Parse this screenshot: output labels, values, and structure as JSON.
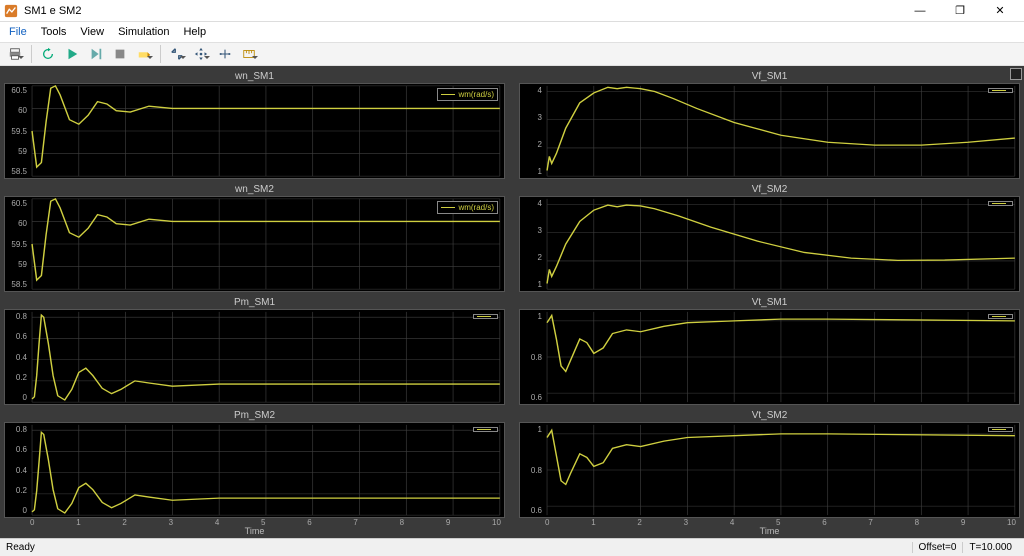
{
  "window": {
    "title": "SM1 e SM2",
    "controls": {
      "minimize": "—",
      "maximize": "❐",
      "close": "✕"
    }
  },
  "menubar": {
    "items": [
      {
        "label": "File",
        "active": true
      },
      {
        "label": "Tools",
        "active": false
      },
      {
        "label": "View",
        "active": false
      },
      {
        "label": "Simulation",
        "active": false
      },
      {
        "label": "Help",
        "active": false
      }
    ]
  },
  "toolbar": {
    "buttons": [
      {
        "name": "print-icon",
        "dd": true
      },
      {
        "name": "sep"
      },
      {
        "name": "restart-icon",
        "dd": false
      },
      {
        "name": "run-icon",
        "dd": false
      },
      {
        "name": "step-icon",
        "dd": false
      },
      {
        "name": "stop-icon",
        "dd": false
      },
      {
        "name": "highlight-icon",
        "dd": true
      },
      {
        "name": "sep"
      },
      {
        "name": "zoom-icon",
        "dd": true
      },
      {
        "name": "pan-icon",
        "dd": true
      },
      {
        "name": "cursor-icon",
        "dd": false
      },
      {
        "name": "measure-icon",
        "dd": true
      }
    ]
  },
  "scope": {
    "background": "#3a3a3a",
    "plot_bg": "#000000",
    "grid_color": "#404040",
    "line_color": "#cfcf40",
    "text_color": "#aaaaaa",
    "xlim": [
      0,
      10
    ],
    "xticks": [
      0,
      1,
      2,
      3,
      4,
      5,
      6,
      7,
      8,
      9,
      10
    ],
    "xlabel": "Time",
    "plots": [
      {
        "title": "wn_SM1",
        "legend": "wm(rad/s)",
        "ylim": [
          58.5,
          60.5
        ],
        "yticks": [
          58.5,
          59,
          59.5,
          60,
          60.5
        ],
        "data": [
          [
            0,
            59.5
          ],
          [
            0.1,
            58.7
          ],
          [
            0.2,
            58.8
          ],
          [
            0.3,
            59.7
          ],
          [
            0.4,
            60.45
          ],
          [
            0.5,
            60.5
          ],
          [
            0.6,
            60.3
          ],
          [
            0.8,
            59.75
          ],
          [
            1.0,
            59.65
          ],
          [
            1.2,
            59.85
          ],
          [
            1.4,
            60.15
          ],
          [
            1.6,
            60.1
          ],
          [
            1.8,
            59.95
          ],
          [
            2.1,
            59.92
          ],
          [
            2.5,
            60.05
          ],
          [
            3.0,
            60.0
          ],
          [
            3.5,
            60.0
          ],
          [
            10,
            60.0
          ]
        ]
      },
      {
        "title": "Vf_SM1",
        "legend": "<Vf>",
        "ylim": [
          1,
          4.2
        ],
        "yticks": [
          1,
          2,
          3,
          4
        ],
        "data": [
          [
            0,
            1.2
          ],
          [
            0.05,
            1.7
          ],
          [
            0.1,
            1.45
          ],
          [
            0.2,
            1.8
          ],
          [
            0.4,
            2.7
          ],
          [
            0.7,
            3.6
          ],
          [
            1.0,
            3.95
          ],
          [
            1.3,
            4.15
          ],
          [
            1.5,
            4.1
          ],
          [
            1.7,
            4.15
          ],
          [
            2.0,
            4.1
          ],
          [
            2.3,
            4.0
          ],
          [
            2.7,
            3.75
          ],
          [
            3.2,
            3.4
          ],
          [
            4.0,
            2.9
          ],
          [
            5.0,
            2.45
          ],
          [
            6.0,
            2.2
          ],
          [
            7.0,
            2.1
          ],
          [
            8.0,
            2.1
          ],
          [
            9.0,
            2.2
          ],
          [
            10,
            2.35
          ]
        ]
      },
      {
        "title": "wn_SM2",
        "legend": "wm(rad/s)",
        "ylim": [
          58.5,
          60.5
        ],
        "yticks": [
          58.5,
          59,
          59.5,
          60,
          60.5
        ],
        "data": [
          [
            0,
            59.5
          ],
          [
            0.1,
            58.7
          ],
          [
            0.2,
            58.8
          ],
          [
            0.3,
            59.7
          ],
          [
            0.4,
            60.45
          ],
          [
            0.5,
            60.5
          ],
          [
            0.6,
            60.3
          ],
          [
            0.8,
            59.75
          ],
          [
            1.0,
            59.65
          ],
          [
            1.2,
            59.85
          ],
          [
            1.4,
            60.15
          ],
          [
            1.6,
            60.1
          ],
          [
            1.8,
            59.95
          ],
          [
            2.1,
            59.92
          ],
          [
            2.5,
            60.05
          ],
          [
            3.0,
            60.0
          ],
          [
            3.5,
            60.0
          ],
          [
            10,
            60.0
          ]
        ]
      },
      {
        "title": "Vf_SM2",
        "legend": "<Vf>",
        "ylim": [
          1,
          4.2
        ],
        "yticks": [
          1,
          2,
          3,
          4
        ],
        "data": [
          [
            0,
            1.2
          ],
          [
            0.05,
            1.7
          ],
          [
            0.1,
            1.45
          ],
          [
            0.2,
            1.8
          ],
          [
            0.4,
            2.6
          ],
          [
            0.7,
            3.4
          ],
          [
            1.0,
            3.8
          ],
          [
            1.3,
            3.98
          ],
          [
            1.5,
            3.92
          ],
          [
            1.7,
            3.98
          ],
          [
            2.0,
            3.95
          ],
          [
            2.3,
            3.85
          ],
          [
            2.8,
            3.6
          ],
          [
            3.5,
            3.2
          ],
          [
            4.5,
            2.7
          ],
          [
            5.5,
            2.3
          ],
          [
            6.5,
            2.1
          ],
          [
            7.5,
            2.02
          ],
          [
            8.5,
            2.03
          ],
          [
            10,
            2.1
          ]
        ]
      },
      {
        "title": "Pm_SM1",
        "legend": "<Pm>",
        "ylim": [
          0,
          0.85
        ],
        "yticks": [
          0,
          0.2,
          0.4,
          0.6,
          0.8
        ],
        "data": [
          [
            0,
            0.03
          ],
          [
            0.05,
            0.05
          ],
          [
            0.1,
            0.25
          ],
          [
            0.15,
            0.55
          ],
          [
            0.2,
            0.82
          ],
          [
            0.25,
            0.8
          ],
          [
            0.35,
            0.55
          ],
          [
            0.45,
            0.25
          ],
          [
            0.55,
            0.06
          ],
          [
            0.7,
            0.02
          ],
          [
            0.85,
            0.12
          ],
          [
            1.0,
            0.28
          ],
          [
            1.15,
            0.32
          ],
          [
            1.3,
            0.25
          ],
          [
            1.5,
            0.13
          ],
          [
            1.7,
            0.08
          ],
          [
            1.9,
            0.12
          ],
          [
            2.2,
            0.2
          ],
          [
            2.5,
            0.18
          ],
          [
            3.0,
            0.15
          ],
          [
            4.0,
            0.17
          ],
          [
            10,
            0.17
          ]
        ]
      },
      {
        "title": "Vt_SM1",
        "legend": "<Vt>",
        "ylim": [
          0.55,
          1.05
        ],
        "yticks": [
          0.6,
          0.8,
          1
        ],
        "data": [
          [
            0,
            0.99
          ],
          [
            0.1,
            1.03
          ],
          [
            0.2,
            0.9
          ],
          [
            0.3,
            0.75
          ],
          [
            0.4,
            0.72
          ],
          [
            0.5,
            0.78
          ],
          [
            0.7,
            0.9
          ],
          [
            0.85,
            0.88
          ],
          [
            1.0,
            0.82
          ],
          [
            1.2,
            0.85
          ],
          [
            1.4,
            0.93
          ],
          [
            1.7,
            0.95
          ],
          [
            2.0,
            0.94
          ],
          [
            2.5,
            0.97
          ],
          [
            3.0,
            0.99
          ],
          [
            4.0,
            1.0
          ],
          [
            5.0,
            1.01
          ],
          [
            6.0,
            1.01
          ],
          [
            10,
            1.0
          ]
        ]
      },
      {
        "title": "Pm_SM2",
        "legend": "<Pm>",
        "ylim": [
          0,
          0.85
        ],
        "yticks": [
          0,
          0.2,
          0.4,
          0.6,
          0.8
        ],
        "data": [
          [
            0,
            0.03
          ],
          [
            0.05,
            0.05
          ],
          [
            0.1,
            0.23
          ],
          [
            0.15,
            0.5
          ],
          [
            0.2,
            0.78
          ],
          [
            0.25,
            0.76
          ],
          [
            0.35,
            0.52
          ],
          [
            0.45,
            0.24
          ],
          [
            0.55,
            0.06
          ],
          [
            0.7,
            0.02
          ],
          [
            0.85,
            0.11
          ],
          [
            1.0,
            0.26
          ],
          [
            1.15,
            0.3
          ],
          [
            1.3,
            0.24
          ],
          [
            1.5,
            0.12
          ],
          [
            1.7,
            0.07
          ],
          [
            1.9,
            0.11
          ],
          [
            2.2,
            0.19
          ],
          [
            2.5,
            0.17
          ],
          [
            3.0,
            0.14
          ],
          [
            4.0,
            0.16
          ],
          [
            10,
            0.16
          ]
        ]
      },
      {
        "title": "Vt_SM2",
        "legend": "<Vt>",
        "ylim": [
          0.55,
          1.05
        ],
        "yticks": [
          0.6,
          0.8,
          1
        ],
        "data": [
          [
            0,
            0.98
          ],
          [
            0.1,
            1.02
          ],
          [
            0.2,
            0.88
          ],
          [
            0.3,
            0.74
          ],
          [
            0.4,
            0.72
          ],
          [
            0.5,
            0.78
          ],
          [
            0.7,
            0.89
          ],
          [
            0.85,
            0.87
          ],
          [
            1.0,
            0.82
          ],
          [
            1.2,
            0.84
          ],
          [
            1.4,
            0.92
          ],
          [
            1.7,
            0.94
          ],
          [
            2.0,
            0.93
          ],
          [
            2.5,
            0.96
          ],
          [
            3.0,
            0.98
          ],
          [
            4.0,
            0.99
          ],
          [
            5.0,
            1.0
          ],
          [
            6.0,
            1.0
          ],
          [
            10,
            0.99
          ]
        ]
      }
    ]
  },
  "statusbar": {
    "ready": "Ready",
    "offset": "Offset=0",
    "time": "T=10.000"
  }
}
